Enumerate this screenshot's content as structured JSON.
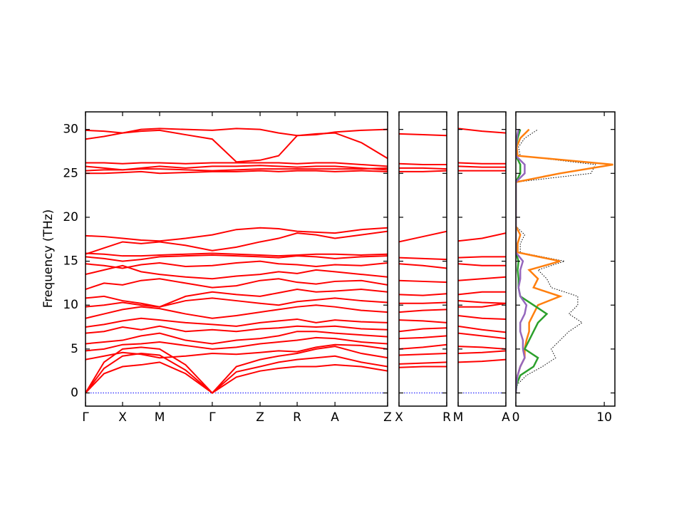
{
  "chart_data": [
    {
      "type": "line",
      "ylabel": "Frequency (THz)",
      "ylim": [
        -1.5,
        32
      ],
      "yticks": [
        0,
        5,
        10,
        15,
        20,
        25,
        30
      ],
      "ytick_labels": true,
      "xlim": [
        0,
        8.15
      ],
      "xticks": [
        {
          "value": 0,
          "label": "Γ"
        },
        {
          "value": 1,
          "label": "X"
        },
        {
          "value": 2,
          "label": "M"
        },
        {
          "value": 3.42,
          "label": "Γ"
        },
        {
          "value": 4.71,
          "label": "Z"
        },
        {
          "value": 5.71,
          "label": "R"
        },
        {
          "value": 6.73,
          "label": "A"
        },
        {
          "value": 8.15,
          "label": "Z"
        }
      ],
      "color": "#ff0000",
      "x": [
        0,
        0.5,
        1,
        1.5,
        2,
        2.7,
        3.42,
        4.07,
        4.71,
        5.21,
        5.71,
        6.22,
        6.73,
        7.44,
        8.15
      ],
      "series": [
        {
          "color": "#0000ff",
          "dash": "dotted",
          "values": [
            0,
            0,
            0,
            0,
            0,
            0,
            0,
            0,
            0,
            0,
            0,
            0,
            0,
            0,
            0
          ]
        },
        {
          "values": [
            0,
            2.2,
            3.0,
            3.2,
            3.5,
            2.2,
            0,
            1.8,
            2.5,
            2.8,
            3.0,
            3.0,
            3.2,
            3.0,
            2.5
          ]
        },
        {
          "values": [
            0,
            2.8,
            4.2,
            4.5,
            4.3,
            2.6,
            0,
            2.4,
            3.0,
            3.5,
            3.8,
            4.0,
            4.2,
            3.5,
            3.0
          ]
        },
        {
          "values": [
            0,
            3.5,
            5.0,
            5.2,
            5.0,
            3.2,
            0,
            3.0,
            3.8,
            4.2,
            4.5,
            5.0,
            5.3,
            4.5,
            4.0
          ]
        },
        {
          "values": [
            3.8,
            4.2,
            4.6,
            4.4,
            4.0,
            4.2,
            4.5,
            4.4,
            4.6,
            4.8,
            4.7,
            5.2,
            5.5,
            5.4,
            5.0
          ]
        },
        {
          "values": [
            4.8,
            5.0,
            5.5,
            5.6,
            5.8,
            5.4,
            5.0,
            5.2,
            5.6,
            5.8,
            6.0,
            6.3,
            6.2,
            5.8,
            5.6
          ]
        },
        {
          "values": [
            5.6,
            5.8,
            6.0,
            6.5,
            6.8,
            6.0,
            5.6,
            6.0,
            6.2,
            6.5,
            7.0,
            7.0,
            6.8,
            6.6,
            6.4
          ]
        },
        {
          "values": [
            6.8,
            7.0,
            7.5,
            7.2,
            7.6,
            7.0,
            7.2,
            7.0,
            7.3,
            7.4,
            7.6,
            7.5,
            7.6,
            7.3,
            7.2
          ]
        },
        {
          "values": [
            7.5,
            7.8,
            8.2,
            8.5,
            8.3,
            8.0,
            7.8,
            7.6,
            8.0,
            8.2,
            8.4,
            8.0,
            8.3,
            8.1,
            8.0
          ]
        },
        {
          "values": [
            8.5,
            9.0,
            9.5,
            9.8,
            9.6,
            9.0,
            8.5,
            8.8,
            9.2,
            9.5,
            9.8,
            10.0,
            9.8,
            9.4,
            9.2
          ]
        },
        {
          "values": [
            9.8,
            10.0,
            10.3,
            10.0,
            9.8,
            10.5,
            10.8,
            10.5,
            10.2,
            10.0,
            10.4,
            10.6,
            10.8,
            10.5,
            10.3
          ]
        },
        {
          "values": [
            10.8,
            11.0,
            10.5,
            10.2,
            9.8,
            11.0,
            11.5,
            11.2,
            11.0,
            11.4,
            11.8,
            11.5,
            11.6,
            11.8,
            11.5
          ]
        },
        {
          "values": [
            11.8,
            12.5,
            12.3,
            12.8,
            13.0,
            12.5,
            12.0,
            12.2,
            12.8,
            13.0,
            12.6,
            12.4,
            12.7,
            12.8,
            12.3
          ]
        },
        {
          "values": [
            13.5,
            14.0,
            14.5,
            13.8,
            13.5,
            13.2,
            13.0,
            13.3,
            13.5,
            13.8,
            13.6,
            14.0,
            13.8,
            13.5,
            13.2
          ]
        },
        {
          "values": [
            14.7,
            14.5,
            14.2,
            14.6,
            14.8,
            14.4,
            14.5,
            14.8,
            15.0,
            14.7,
            14.6,
            14.4,
            14.6,
            14.5,
            14.8
          ]
        },
        {
          "values": [
            15.5,
            15.3,
            15.0,
            15.2,
            15.5,
            15.6,
            15.7,
            15.6,
            15.5,
            15.4,
            15.6,
            15.5,
            15.3,
            15.5,
            15.6
          ]
        },
        {
          "values": [
            15.9,
            15.8,
            15.6,
            15.6,
            15.7,
            15.8,
            15.9,
            15.8,
            15.7,
            15.6,
            15.7,
            15.8,
            15.8,
            15.7,
            15.8
          ]
        },
        {
          "values": [
            15.8,
            16.5,
            17.2,
            17.0,
            17.2,
            16.8,
            16.2,
            16.6,
            17.2,
            17.6,
            18.2,
            18.0,
            17.6,
            18.0,
            18.4
          ]
        },
        {
          "values": [
            17.9,
            17.8,
            17.6,
            17.4,
            17.3,
            17.6,
            18.0,
            18.6,
            18.8,
            18.7,
            18.4,
            18.3,
            18.2,
            18.6,
            18.8
          ]
        },
        {
          "values": [
            25.0,
            25.0,
            25.1,
            25.2,
            25.0,
            25.1,
            25.2,
            25.2,
            25.3,
            25.2,
            25.3,
            25.3,
            25.2,
            25.3,
            25.2
          ]
        },
        {
          "values": [
            25.3,
            25.4,
            25.4,
            25.5,
            25.5,
            25.4,
            25.3,
            25.4,
            25.5,
            25.5,
            25.5,
            25.5,
            25.5,
            25.5,
            25.6
          ]
        },
        {
          "values": [
            25.8,
            25.6,
            25.4,
            25.6,
            25.8,
            25.6,
            25.8,
            25.8,
            25.9,
            25.8,
            25.7,
            25.8,
            25.8,
            25.6,
            25.4
          ]
        },
        {
          "values": [
            26.2,
            26.2,
            26.1,
            26.2,
            26.2,
            26.1,
            26.2,
            26.2,
            26.2,
            26.2,
            26.1,
            26.2,
            26.2,
            26.0,
            25.8
          ]
        },
        {
          "values": [
            28.9,
            29.2,
            29.6,
            29.8,
            29.9,
            29.4,
            28.9,
            26.3,
            26.5,
            27.0,
            29.3,
            29.5,
            29.6,
            28.5,
            26.7
          ]
        },
        {
          "values": [
            29.9,
            29.8,
            29.6,
            30.0,
            30.1,
            30.0,
            29.9,
            30.1,
            30.0,
            29.6,
            29.3,
            29.4,
            29.7,
            29.9,
            30.0
          ]
        }
      ]
    },
    {
      "type": "line",
      "ylim": [
        -1.5,
        32
      ],
      "yticks": [
        0,
        5,
        10,
        15,
        20,
        25,
        30
      ],
      "ytick_labels": false,
      "xlim": [
        0,
        1
      ],
      "xticks": [
        {
          "value": 0,
          "label": "X"
        },
        {
          "value": 1,
          "label": "R"
        }
      ],
      "color": "#ff0000",
      "x": [
        0,
        0.5,
        1
      ],
      "series": [
        {
          "color": "#0000ff",
          "dash": "dotted",
          "values": [
            0,
            0,
            0
          ]
        },
        {
          "values": [
            2.9,
            3.0,
            3.0
          ]
        },
        {
          "values": [
            3.3,
            3.4,
            3.5
          ]
        },
        {
          "values": [
            4.3,
            4.4,
            4.5
          ]
        },
        {
          "values": [
            5.0,
            5.2,
            5.5
          ]
        },
        {
          "values": [
            6.2,
            6.3,
            6.5
          ]
        },
        {
          "values": [
            7.0,
            7.3,
            7.4
          ]
        },
        {
          "values": [
            8.3,
            8.2,
            8.0
          ]
        },
        {
          "values": [
            9.2,
            9.4,
            9.5
          ]
        },
        {
          "values": [
            10.2,
            10.2,
            10.3
          ]
        },
        {
          "values": [
            11.2,
            11.1,
            11.3
          ]
        },
        {
          "values": [
            12.8,
            12.7,
            12.6
          ]
        },
        {
          "values": [
            14.7,
            14.5,
            14.2
          ]
        },
        {
          "values": [
            15.4,
            15.3,
            15.2
          ]
        },
        {
          "values": [
            17.2,
            17.8,
            18.4
          ]
        },
        {
          "values": [
            25.2,
            25.2,
            25.3
          ]
        },
        {
          "values": [
            25.6,
            25.6,
            25.5
          ]
        },
        {
          "values": [
            26.1,
            26.0,
            26.0
          ]
        },
        {
          "values": [
            29.5,
            29.4,
            29.3
          ]
        }
      ]
    },
    {
      "type": "line",
      "ylim": [
        -1.5,
        32
      ],
      "yticks": [
        0,
        5,
        10,
        15,
        20,
        25,
        30
      ],
      "ytick_labels": false,
      "xlim": [
        0,
        1
      ],
      "xticks": [
        {
          "value": 0,
          "label": "M"
        },
        {
          "value": 1,
          "label": "A"
        }
      ],
      "color": "#ff0000",
      "x": [
        0,
        0.5,
        1
      ],
      "series": [
        {
          "color": "#0000ff",
          "dash": "dotted",
          "values": [
            0,
            0,
            0
          ]
        },
        {
          "values": [
            3.5,
            3.6,
            3.8
          ]
        },
        {
          "values": [
            4.5,
            4.6,
            4.8
          ]
        },
        {
          "values": [
            5.3,
            5.2,
            5.0
          ]
        },
        {
          "values": [
            6.8,
            6.5,
            6.2
          ]
        },
        {
          "values": [
            7.6,
            7.2,
            6.9
          ]
        },
        {
          "values": [
            8.8,
            8.5,
            8.4
          ]
        },
        {
          "values": [
            9.8,
            9.8,
            10.2
          ]
        },
        {
          "values": [
            10.5,
            10.3,
            10.2
          ]
        },
        {
          "values": [
            11.2,
            11.5,
            11.5
          ]
        },
        {
          "values": [
            12.8,
            13.0,
            13.2
          ]
        },
        {
          "values": [
            14.7,
            14.5,
            14.5
          ]
        },
        {
          "values": [
            15.4,
            15.5,
            15.5
          ]
        },
        {
          "values": [
            17.3,
            17.6,
            18.2
          ]
        },
        {
          "values": [
            25.3,
            25.3,
            25.3
          ]
        },
        {
          "values": [
            25.8,
            25.7,
            25.7
          ]
        },
        {
          "values": [
            26.2,
            26.1,
            26.1
          ]
        },
        {
          "values": [
            30.1,
            29.8,
            29.6
          ]
        }
      ]
    },
    {
      "type": "dos",
      "ylim": [
        -1.5,
        32
      ],
      "yticks": [
        0,
        5,
        10,
        15,
        20,
        25,
        30
      ],
      "ytick_labels": false,
      "xlim": [
        0,
        11.2
      ],
      "xticks": [
        0,
        10
      ],
      "y": [
        0,
        1,
        2,
        3,
        4,
        5,
        6,
        7,
        8,
        9,
        10,
        11,
        12,
        13,
        14,
        15,
        16,
        17,
        18,
        19,
        20,
        21,
        22,
        23,
        24,
        25,
        26,
        27,
        28,
        29,
        30
      ],
      "series": [
        {
          "color": "#000000",
          "dash": "dotted",
          "values": [
            0,
            0.2,
            1.2,
            3,
            4.5,
            4,
            5,
            6,
            7.5,
            6,
            7,
            7,
            4,
            3.5,
            2.5,
            5.5,
            0.5,
            0.5,
            1,
            0,
            0,
            0,
            0,
            0,
            0,
            8.5,
            9,
            0.5,
            0.3,
            1,
            2.5
          ]
        },
        {
          "color": "#ff7f0e",
          "values": [
            0,
            0,
            0.2,
            0.5,
            1,
            1,
            1.2,
            1.5,
            1.5,
            2,
            2.5,
            5,
            2,
            2.5,
            1.5,
            5,
            0.2,
            0.2,
            0.5,
            0,
            0,
            0,
            0,
            0,
            0,
            5,
            11,
            0.2,
            0.1,
            0.5,
            1.5
          ]
        },
        {
          "color": "#2ca02c",
          "values": [
            0,
            0.1,
            0.5,
            2,
            2.5,
            1,
            1.5,
            2,
            2.5,
            3.5,
            2,
            0.5,
            0.3,
            0.3,
            0.2,
            0.3,
            0,
            0,
            0,
            0,
            0,
            0,
            0,
            0,
            0,
            0.5,
            0.5,
            0,
            0,
            0.2,
            0.5
          ]
        },
        {
          "color": "#9467bd",
          "values": [
            0,
            0.05,
            0.2,
            0.5,
            1,
            0.8,
            0.8,
            0.5,
            0.5,
            1,
            1.2,
            0.5,
            0.3,
            0.5,
            0.5,
            0.8,
            0,
            0,
            0,
            0,
            0,
            0,
            0,
            0,
            0,
            1,
            1,
            0,
            0,
            0.1,
            0.3
          ]
        }
      ]
    }
  ]
}
